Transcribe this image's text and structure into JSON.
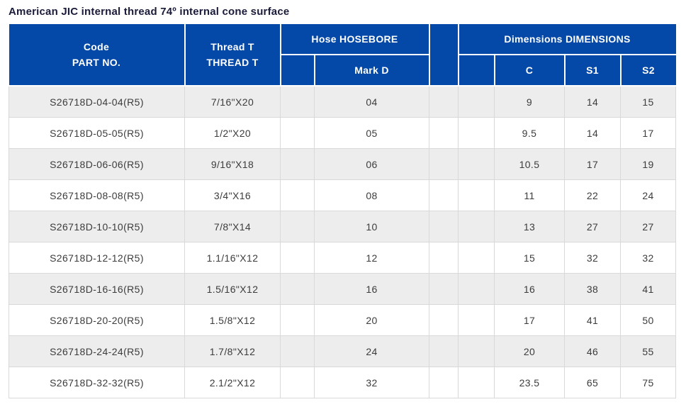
{
  "page": {
    "title": "American JIC internal thread 74º internal cone surface"
  },
  "table": {
    "header": {
      "code_line1": "Code",
      "code_line2": "PART NO.",
      "thread_line1": "Thread T",
      "thread_line2": "THREAD T",
      "hose_group": "Hose HOSEBORE",
      "mark": "Mark D",
      "dimensions_group": "Dimensions DIMENSIONS",
      "c": "C",
      "s1": "S1",
      "s2": "S2"
    },
    "rows": [
      {
        "part_no": "S26718D-04-04(R5)",
        "thread": "7/16\"X20",
        "mark": "04",
        "c": "9",
        "s1": "14",
        "s2": "15"
      },
      {
        "part_no": "S26718D-05-05(R5)",
        "thread": "1/2\"X20",
        "mark": "05",
        "c": "9.5",
        "s1": "14",
        "s2": "17"
      },
      {
        "part_no": "S26718D-06-06(R5)",
        "thread": "9/16\"X18",
        "mark": "06",
        "c": "10.5",
        "s1": "17",
        "s2": "19"
      },
      {
        "part_no": "S26718D-08-08(R5)",
        "thread": "3/4\"X16",
        "mark": "08",
        "c": "11",
        "s1": "22",
        "s2": "24"
      },
      {
        "part_no": "S26718D-10-10(R5)",
        "thread": "7/8\"X14",
        "mark": "10",
        "c": "13",
        "s1": "27",
        "s2": "27"
      },
      {
        "part_no": "S26718D-12-12(R5)",
        "thread": "1.1/16\"X12",
        "mark": "12",
        "c": "15",
        "s1": "32",
        "s2": "32"
      },
      {
        "part_no": "S26718D-16-16(R5)",
        "thread": "1.5/16\"X12",
        "mark": "16",
        "c": "16",
        "s1": "38",
        "s2": "41"
      },
      {
        "part_no": "S26718D-20-20(R5)",
        "thread": "1.5/8\"X12",
        "mark": "20",
        "c": "17",
        "s1": "41",
        "s2": "50"
      },
      {
        "part_no": "S26718D-24-24(R5)",
        "thread": "1.7/8\"X12",
        "mark": "24",
        "c": "20",
        "s1": "46",
        "s2": "55"
      },
      {
        "part_no": "S26718D-32-32(R5)",
        "thread": "2.1/2\"X12",
        "mark": "32",
        "c": "23.5",
        "s1": "65",
        "s2": "75"
      }
    ]
  },
  "colors": {
    "header_blue": "#0449a8",
    "header_text": "#ffffff",
    "alt_row_gray": "#ededed",
    "border_gray": "#d9d9d9",
    "title_text": "#1b1b3a",
    "body_text": "#3c3c3c"
  }
}
